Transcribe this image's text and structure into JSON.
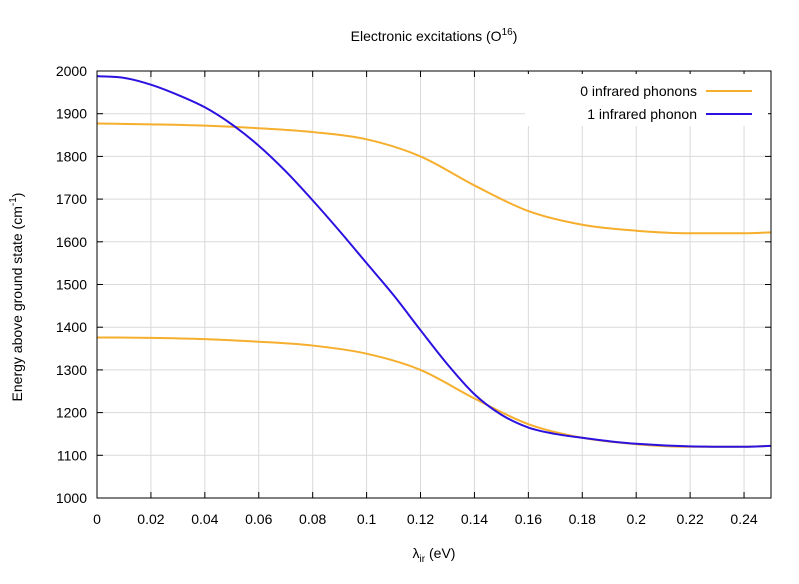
{
  "chart_data": {
    "type": "line",
    "title": "Electronic excitations (O",
    "title_sup": "16",
    "title_close": ")",
    "xlabel_base": "λ",
    "xlabel_sub": "ir",
    "xlabel_rest": " (eV)",
    "ylabel_main": "Energy above ground state (cm",
    "ylabel_sup": "-1",
    "ylabel_close": ")",
    "xlim": [
      0,
      0.25
    ],
    "ylim": [
      1000,
      2000
    ],
    "grid": true,
    "legend_position": "top-right",
    "x_ticks": [
      0,
      0.02,
      0.04,
      0.06,
      0.08,
      0.1,
      0.12,
      0.14,
      0.16,
      0.18,
      0.2,
      0.22,
      0.24
    ],
    "x_tick_labels": [
      "0",
      "0.02",
      "0.04",
      "0.06",
      "0.08",
      "0.1",
      "0.12",
      "0.14",
      "0.16",
      "0.18",
      "0.2",
      "0.22",
      "0.24"
    ],
    "y_ticks": [
      1000,
      1100,
      1200,
      1300,
      1400,
      1500,
      1600,
      1700,
      1800,
      1900,
      2000
    ],
    "y_tick_labels": [
      "1000",
      "1100",
      "1200",
      "1300",
      "1400",
      "1500",
      "1600",
      "1700",
      "1800",
      "1900",
      "2000"
    ],
    "series": [
      {
        "name": "0 infrared phonons",
        "color": "#f6ae2d",
        "lines": [
          {
            "x": [
              0,
              0.02,
              0.04,
              0.06,
              0.08,
              0.1,
              0.12,
              0.14,
              0.16,
              0.18,
              0.2,
              0.22,
              0.24,
              0.25
            ],
            "y": [
              1877,
              1875,
              1872,
              1866,
              1857,
              1840,
              1800,
              1732,
              1672,
              1640,
              1626,
              1620,
              1620,
              1622
            ]
          },
          {
            "x": [
              0,
              0.02,
              0.04,
              0.06,
              0.08,
              0.1,
              0.12,
              0.14,
              0.16,
              0.18,
              0.2,
              0.22,
              0.24,
              0.25
            ],
            "y": [
              1376,
              1375,
              1372,
              1366,
              1357,
              1338,
              1300,
              1233,
              1173,
              1141,
              1126,
              1120,
              1120,
              1122
            ]
          }
        ]
      },
      {
        "name": "1 infrared phonon",
        "color": "#2b12e0",
        "lines": [
          {
            "x": [
              0,
              0.01,
              0.02,
              0.03,
              0.04,
              0.05,
              0.06,
              0.07,
              0.08,
              0.09,
              0.1,
              0.11,
              0.12,
              0.13,
              0.14,
              0.15,
              0.16,
              0.17,
              0.18,
              0.19,
              0.2,
              0.22,
              0.24,
              0.25
            ],
            "y": [
              1988,
              1984,
              1968,
              1944,
              1915,
              1875,
              1825,
              1765,
              1697,
              1625,
              1550,
              1475,
              1393,
              1313,
              1243,
              1195,
              1165,
              1150,
              1141,
              1133,
              1127,
              1121,
              1120,
              1122
            ]
          }
        ]
      }
    ]
  }
}
